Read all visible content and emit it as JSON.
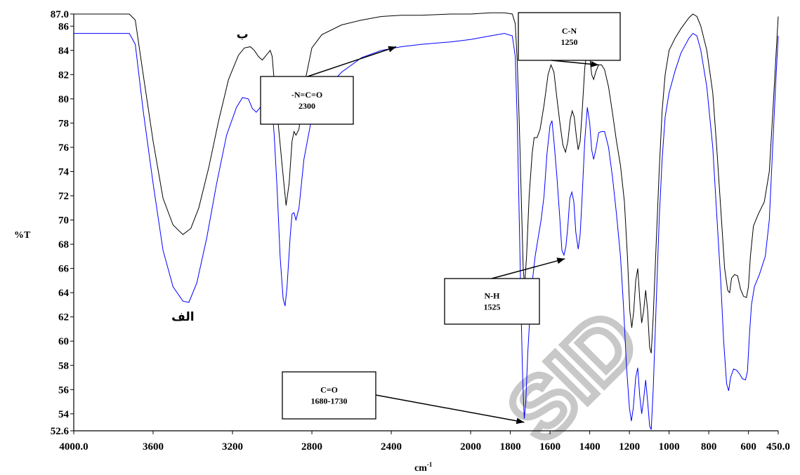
{
  "chart_data": {
    "type": "line",
    "xlabel": "cm",
    "xlabel_sup": "-1",
    "ylabel": "%T",
    "xlim": [
      4000,
      450
    ],
    "ylim": [
      52.6,
      87.0
    ],
    "x_tick_labels": [
      {
        "x": 4000,
        "label": "4000.0"
      },
      {
        "x": 3600,
        "label": "3600"
      },
      {
        "x": 3200,
        "label": "3200"
      },
      {
        "x": 2800,
        "label": "2800"
      },
      {
        "x": 2400,
        "label": "2400"
      },
      {
        "x": 2000,
        "label": "2000"
      },
      {
        "x": 1800,
        "label": "1800"
      },
      {
        "x": 1600,
        "label": "1600"
      },
      {
        "x": 1400,
        "label": "1400"
      },
      {
        "x": 1200,
        "label": "1200"
      },
      {
        "x": 1000,
        "label": "1000"
      },
      {
        "x": 800,
        "label": "800"
      },
      {
        "x": 600,
        "label": "600"
      },
      {
        "x": 450,
        "label": "450.0"
      }
    ],
    "y_tick_labels": [
      {
        "y": 87.0,
        "label": "87.0"
      },
      {
        "y": 86,
        "label": "86"
      },
      {
        "y": 84,
        "label": "84"
      },
      {
        "y": 82,
        "label": "82"
      },
      {
        "y": 80,
        "label": "80"
      },
      {
        "y": 78,
        "label": "78"
      },
      {
        "y": 76,
        "label": "76"
      },
      {
        "y": 74,
        "label": "74"
      },
      {
        "y": 72,
        "label": "72"
      },
      {
        "y": 70,
        "label": "70"
      },
      {
        "y": 68,
        "label": "68"
      },
      {
        "y": 66,
        "label": "66"
      },
      {
        "y": 64,
        "label": "64"
      },
      {
        "y": 62,
        "label": "62"
      },
      {
        "y": 60,
        "label": "60"
      },
      {
        "y": 58,
        "label": "58"
      },
      {
        "y": 56,
        "label": "56"
      },
      {
        "y": 54,
        "label": "54"
      },
      {
        "y": 52.6,
        "label": "52.6"
      }
    ],
    "series": [
      {
        "label": "ب",
        "color": "#000000",
        "label_at": [
          3150,
          85.0
        ],
        "points": [
          [
            4000,
            87.0
          ],
          [
            3720,
            87.0
          ],
          [
            3690,
            86.5
          ],
          [
            3650,
            82.0
          ],
          [
            3600,
            76.5
          ],
          [
            3550,
            71.8
          ],
          [
            3500,
            69.6
          ],
          [
            3450,
            68.8
          ],
          [
            3410,
            69.3
          ],
          [
            3370,
            71.0
          ],
          [
            3320,
            74.3
          ],
          [
            3270,
            78.2
          ],
          [
            3220,
            81.6
          ],
          [
            3170,
            83.6
          ],
          [
            3140,
            84.2
          ],
          [
            3110,
            84.3
          ],
          [
            3090,
            84.0
          ],
          [
            3070,
            83.5
          ],
          [
            3050,
            83.2
          ],
          [
            3030,
            83.6
          ],
          [
            3010,
            84.0
          ],
          [
            3000,
            83.5
          ],
          [
            2990,
            81.5
          ],
          [
            2970,
            78.0
          ],
          [
            2950,
            74.5
          ],
          [
            2930,
            71.2
          ],
          [
            2915,
            73.0
          ],
          [
            2900,
            76.5
          ],
          [
            2890,
            77.3
          ],
          [
            2880,
            77.0
          ],
          [
            2865,
            77.5
          ],
          [
            2840,
            81.0
          ],
          [
            2800,
            84.2
          ],
          [
            2750,
            85.3
          ],
          [
            2650,
            86.1
          ],
          [
            2550,
            86.5
          ],
          [
            2450,
            86.8
          ],
          [
            2350,
            86.9
          ],
          [
            2250,
            86.9
          ],
          [
            2100,
            87.0
          ],
          [
            2000,
            87.0
          ],
          [
            1900,
            87.1
          ],
          [
            1830,
            87.1
          ],
          [
            1790,
            87.0
          ],
          [
            1775,
            86.2
          ],
          [
            1765,
            83.0
          ],
          [
            1755,
            78.0
          ],
          [
            1745,
            72.0
          ],
          [
            1735,
            66.0
          ],
          [
            1728,
            64.6
          ],
          [
            1718,
            67.0
          ],
          [
            1705,
            72.0
          ],
          [
            1690,
            75.5
          ],
          [
            1680,
            76.8
          ],
          [
            1665,
            76.8
          ],
          [
            1650,
            77.5
          ],
          [
            1630,
            79.5
          ],
          [
            1610,
            82.0
          ],
          [
            1595,
            82.8
          ],
          [
            1580,
            82.2
          ],
          [
            1565,
            80.0
          ],
          [
            1550,
            78.0
          ],
          [
            1535,
            76.2
          ],
          [
            1522,
            75.6
          ],
          [
            1510,
            76.5
          ],
          [
            1498,
            78.3
          ],
          [
            1488,
            79.0
          ],
          [
            1478,
            78.5
          ],
          [
            1468,
            77.0
          ],
          [
            1458,
            75.8
          ],
          [
            1448,
            76.5
          ],
          [
            1438,
            79.0
          ],
          [
            1425,
            82.5
          ],
          [
            1412,
            84.3
          ],
          [
            1400,
            83.5
          ],
          [
            1390,
            82.0
          ],
          [
            1380,
            81.6
          ],
          [
            1368,
            82.3
          ],
          [
            1355,
            82.8
          ],
          [
            1340,
            82.8
          ],
          [
            1325,
            82.4
          ],
          [
            1305,
            81.0
          ],
          [
            1285,
            78.8
          ],
          [
            1265,
            76.5
          ],
          [
            1245,
            74.5
          ],
          [
            1225,
            71.5
          ],
          [
            1210,
            67.0
          ],
          [
            1198,
            62.5
          ],
          [
            1188,
            61.1
          ],
          [
            1178,
            62.5
          ],
          [
            1168,
            65.0
          ],
          [
            1158,
            66.0
          ],
          [
            1148,
            63.5
          ],
          [
            1138,
            61.5
          ],
          [
            1128,
            62.5
          ],
          [
            1118,
            64.2
          ],
          [
            1108,
            62.5
          ],
          [
            1098,
            59.5
          ],
          [
            1090,
            59.0
          ],
          [
            1080,
            62.0
          ],
          [
            1065,
            68.0
          ],
          [
            1050,
            74.0
          ],
          [
            1035,
            79.0
          ],
          [
            1020,
            82.0
          ],
          [
            1000,
            84.0
          ],
          [
            970,
            85.0
          ],
          [
            940,
            85.8
          ],
          [
            900,
            86.7
          ],
          [
            880,
            87.0
          ],
          [
            860,
            86.8
          ],
          [
            840,
            86.0
          ],
          [
            810,
            84.0
          ],
          [
            780,
            80.5
          ],
          [
            760,
            76.0
          ],
          [
            740,
            71.0
          ],
          [
            720,
            66.0
          ],
          [
            705,
            64.2
          ],
          [
            695,
            64.0
          ],
          [
            685,
            65.2
          ],
          [
            670,
            65.5
          ],
          [
            655,
            65.4
          ],
          [
            640,
            64.3
          ],
          [
            625,
            63.7
          ],
          [
            610,
            63.6
          ],
          [
            600,
            64.5
          ],
          [
            590,
            67.0
          ],
          [
            575,
            69.5
          ],
          [
            550,
            70.5
          ],
          [
            520,
            71.5
          ],
          [
            495,
            74.0
          ],
          [
            475,
            79.5
          ],
          [
            460,
            84.0
          ],
          [
            450,
            86.8
          ]
        ]
      },
      {
        "label": "الف",
        "color": "#0000ff",
        "label_at": [
          3450,
          61.7
        ],
        "points": [
          [
            4000,
            85.4
          ],
          [
            3720,
            85.4
          ],
          [
            3690,
            84.5
          ],
          [
            3650,
            79.0
          ],
          [
            3600,
            73.0
          ],
          [
            3550,
            67.5
          ],
          [
            3500,
            64.5
          ],
          [
            3450,
            63.3
          ],
          [
            3420,
            63.2
          ],
          [
            3380,
            64.8
          ],
          [
            3330,
            68.5
          ],
          [
            3280,
            73.0
          ],
          [
            3230,
            77.0
          ],
          [
            3180,
            79.3
          ],
          [
            3150,
            80.1
          ],
          [
            3120,
            80.0
          ],
          [
            3100,
            79.2
          ],
          [
            3080,
            78.9
          ],
          [
            3060,
            79.3
          ],
          [
            3045,
            78.2
          ],
          [
            3030,
            78.8
          ],
          [
            3015,
            79.6
          ],
          [
            3000,
            79.2
          ],
          [
            2990,
            77.0
          ],
          [
            2975,
            72.5
          ],
          [
            2960,
            67.0
          ],
          [
            2945,
            63.5
          ],
          [
            2935,
            62.9
          ],
          [
            2925,
            64.5
          ],
          [
            2910,
            68.5
          ],
          [
            2900,
            70.5
          ],
          [
            2890,
            70.6
          ],
          [
            2880,
            70.0
          ],
          [
            2865,
            71.0
          ],
          [
            2840,
            75.0
          ],
          [
            2800,
            78.5
          ],
          [
            2750,
            80.5
          ],
          [
            2650,
            82.2
          ],
          [
            2550,
            83.4
          ],
          [
            2450,
            84.0
          ],
          [
            2350,
            84.3
          ],
          [
            2250,
            84.5
          ],
          [
            2100,
            84.7
          ],
          [
            2000,
            84.9
          ],
          [
            1900,
            85.2
          ],
          [
            1830,
            85.4
          ],
          [
            1790,
            85.2
          ],
          [
            1775,
            83.5
          ],
          [
            1765,
            78.0
          ],
          [
            1755,
            70.0
          ],
          [
            1745,
            62.0
          ],
          [
            1738,
            57.0
          ],
          [
            1730,
            53.6
          ],
          [
            1722,
            55.0
          ],
          [
            1712,
            59.0
          ],
          [
            1700,
            62.5
          ],
          [
            1690,
            64.8
          ],
          [
            1675,
            67.0
          ],
          [
            1660,
            68.5
          ],
          [
            1645,
            70.0
          ],
          [
            1630,
            72.0
          ],
          [
            1615,
            75.5
          ],
          [
            1600,
            77.8
          ],
          [
            1590,
            78.2
          ],
          [
            1580,
            76.5
          ],
          [
            1565,
            73.5
          ],
          [
            1550,
            70.0
          ],
          [
            1540,
            67.5
          ],
          [
            1530,
            67.1
          ],
          [
            1520,
            67.8
          ],
          [
            1510,
            69.5
          ],
          [
            1500,
            71.8
          ],
          [
            1490,
            72.3
          ],
          [
            1480,
            71.5
          ],
          [
            1470,
            69.0
          ],
          [
            1458,
            67.6
          ],
          [
            1448,
            68.8
          ],
          [
            1438,
            72.0
          ],
          [
            1425,
            76.5
          ],
          [
            1412,
            79.3
          ],
          [
            1400,
            78.0
          ],
          [
            1390,
            75.8
          ],
          [
            1380,
            75.0
          ],
          [
            1368,
            75.9
          ],
          [
            1355,
            77.2
          ],
          [
            1340,
            77.3
          ],
          [
            1325,
            77.3
          ],
          [
            1305,
            76.0
          ],
          [
            1285,
            73.5
          ],
          [
            1265,
            70.5
          ],
          [
            1245,
            67.0
          ],
          [
            1230,
            63.0
          ],
          [
            1215,
            58.0
          ],
          [
            1200,
            54.5
          ],
          [
            1190,
            53.4
          ],
          [
            1180,
            54.5
          ],
          [
            1168,
            57.0
          ],
          [
            1158,
            57.8
          ],
          [
            1148,
            55.5
          ],
          [
            1138,
            54.0
          ],
          [
            1128,
            55.2
          ],
          [
            1118,
            56.8
          ],
          [
            1108,
            55.0
          ],
          [
            1098,
            53.0
          ],
          [
            1090,
            52.7
          ],
          [
            1080,
            56.0
          ],
          [
            1065,
            63.0
          ],
          [
            1050,
            70.0
          ],
          [
            1035,
            75.0
          ],
          [
            1020,
            78.5
          ],
          [
            1000,
            80.5
          ],
          [
            970,
            82.3
          ],
          [
            940,
            83.8
          ],
          [
            900,
            85.0
          ],
          [
            880,
            85.4
          ],
          [
            860,
            85.2
          ],
          [
            840,
            84.0
          ],
          [
            810,
            81.0
          ],
          [
            780,
            76.0
          ],
          [
            760,
            70.5
          ],
          [
            740,
            65.0
          ],
          [
            725,
            60.0
          ],
          [
            710,
            56.5
          ],
          [
            700,
            55.9
          ],
          [
            690,
            57.0
          ],
          [
            675,
            57.7
          ],
          [
            660,
            57.6
          ],
          [
            645,
            57.3
          ],
          [
            630,
            56.9
          ],
          [
            615,
            56.8
          ],
          [
            605,
            57.5
          ],
          [
            595,
            60.5
          ],
          [
            585,
            63.0
          ],
          [
            570,
            64.5
          ],
          [
            545,
            65.5
          ],
          [
            515,
            67.0
          ],
          [
            495,
            70.0
          ],
          [
            478,
            76.0
          ],
          [
            462,
            81.5
          ],
          [
            450,
            85.2
          ]
        ]
      }
    ],
    "annotations": [
      {
        "line1": "-N=C=O",
        "line2": "2300",
        "arrow_to": [
          2375,
          84.3
        ]
      },
      {
        "line1": "C-N",
        "line2": "1250",
        "arrow_to": [
          1355,
          82.8
        ]
      },
      {
        "line1": "N-H",
        "line2": "1525",
        "arrow_to": [
          1525,
          66.8
        ]
      },
      {
        "line1": "C=O",
        "line2": "1680-1730",
        "arrow_to": [
          1730,
          53.3
        ]
      }
    ],
    "watermark": "SID",
    "grid": false,
    "legend": "none"
  }
}
